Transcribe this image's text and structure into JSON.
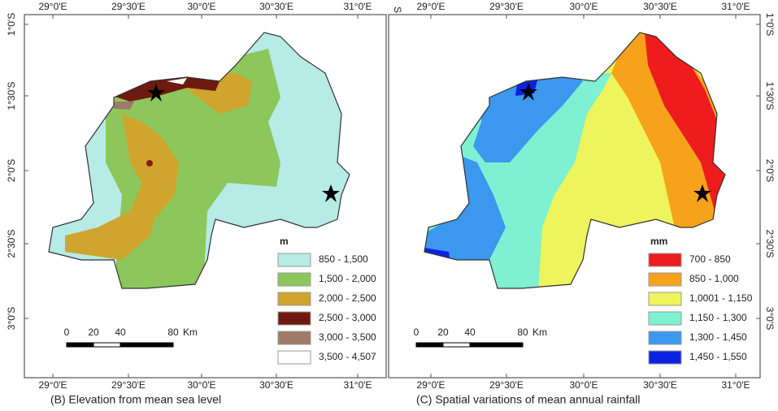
{
  "maps": [
    {
      "caption": "(B) Elevation from mean sea level",
      "legend_title": "m",
      "legend": [
        {
          "label": "850 - 1,500",
          "color": "#b6ebe6"
        },
        {
          "label": "1,500 - 2,000",
          "color": "#8dc65b"
        },
        {
          "label": "2,000 - 2,500",
          "color": "#cfa52e"
        },
        {
          "label": "2,500 - 3,000",
          "color": "#6e1a10"
        },
        {
          "label": "3,000 - 3,500",
          "color": "#a07a68"
        },
        {
          "label": "3,500 - 4,507",
          "color": "#ffffff"
        }
      ],
      "top_ticks": [
        "29°0'E",
        "29°30'E",
        "30°0'E",
        "30°30'E",
        "31°0'E"
      ],
      "bottom_ticks": [
        "29°0'E",
        "29°30'E",
        "30°0'E",
        "30°30'E",
        "31°0'E"
      ],
      "lat_ticks": [
        "1°0'S",
        "1°30'S",
        "2°0'S",
        "2°30'S",
        "3°0'S"
      ],
      "scale_labels": [
        "0",
        "20",
        "40",
        "80",
        "Km"
      ]
    },
    {
      "caption": "(C) Spatial variations of mean annual rainfall",
      "legend_title": "mm",
      "corner_label": "S",
      "legend": [
        {
          "label": "700 - 850",
          "color": "#ee1c1c"
        },
        {
          "label": "850 - 1,000",
          "color": "#f7a21b"
        },
        {
          "label": "1,0001 - 1,150",
          "color": "#eef45c"
        },
        {
          "label": "1,150 - 1,300",
          "color": "#7ff0d2"
        },
        {
          "label": "1,300 - 1,450",
          "color": "#3c97ee"
        },
        {
          "label": "1,450 - 1,550",
          "color": "#0c22e0"
        }
      ],
      "top_ticks": [
        "29°0'E",
        "29°30'E",
        "30°0'E",
        "30°30'E",
        "31°0'E"
      ],
      "bottom_ticks": [
        "29°0'E",
        "29°30'E",
        "30°0'E",
        "30°30'E",
        "31°0'E"
      ],
      "lat_ticks": [
        "1°0'S",
        "1°30'S",
        "2°0'S",
        "2°30'S",
        "3°0'S"
      ],
      "scale_labels": [
        "0",
        "20",
        "40",
        "80",
        "Km"
      ]
    }
  ]
}
